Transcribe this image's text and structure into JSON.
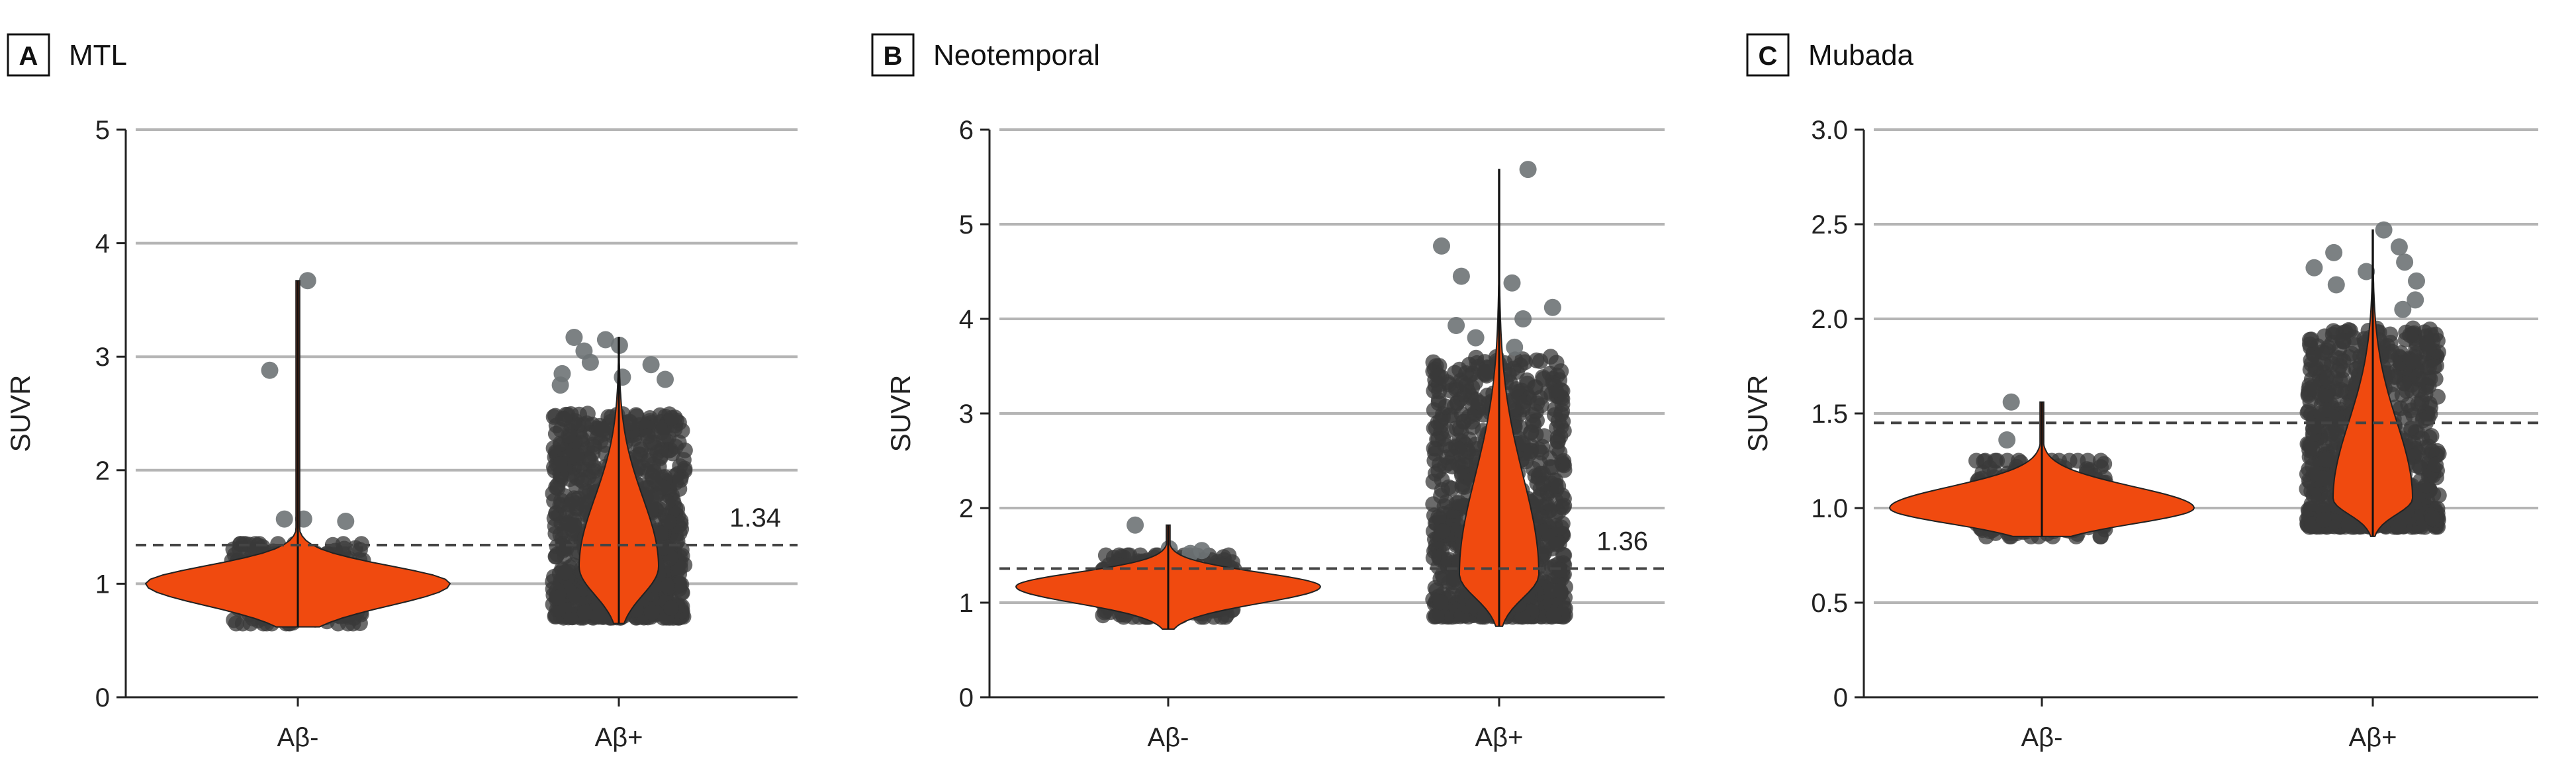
{
  "colors": {
    "violin": "#f04a0f",
    "violin_edge": "#222222",
    "points": "#3a3a3a",
    "gridline": "#b5b5b5",
    "reference_line": "#444444"
  },
  "chart_data": [
    {
      "panel_letter": "A",
      "title": "MTL",
      "type": "violin",
      "ylabel": "SUVR",
      "ylim": [
        0,
        5
      ],
      "yticks": [
        0,
        1,
        2,
        3,
        4,
        5
      ],
      "ytick_labels": [
        "0",
        "1",
        "2",
        "3",
        "4",
        "5"
      ],
      "categories": [
        "Aβ-",
        "Aβ+"
      ],
      "grid": true,
      "reference_line": {
        "value": 1.34,
        "label": "1.34"
      },
      "groups": [
        {
          "name": "Aβ-",
          "min": 0.62,
          "max": 3.67,
          "mode": 1.0,
          "bulk_range": [
            0.65,
            1.35
          ],
          "outliers": [
            3.67,
            2.88,
            1.57,
            1.57,
            1.55
          ]
        },
        {
          "name": "Aβ+",
          "min": 0.65,
          "max": 3.17,
          "mode": 1.15,
          "bulk_range": [
            0.7,
            2.5
          ],
          "outliers": [
            3.17,
            3.15,
            3.1,
            3.05,
            2.95,
            2.93,
            2.85,
            2.82,
            2.8,
            2.75
          ]
        }
      ]
    },
    {
      "panel_letter": "B",
      "title": "Neotemporal",
      "type": "violin",
      "ylabel": "SUVR",
      "ylim": [
        0,
        6
      ],
      "yticks": [
        0,
        1,
        2,
        3,
        4,
        5,
        6
      ],
      "ytick_labels": [
        "0",
        "1",
        "2",
        "3",
        "4",
        "5",
        "6"
      ],
      "categories": [
        "Aβ-",
        "Aβ+"
      ],
      "grid": true,
      "reference_line": {
        "value": 1.36,
        "label": "1.36"
      },
      "groups": [
        {
          "name": "Aβ-",
          "min": 0.72,
          "max": 1.82,
          "mode": 1.17,
          "bulk_range": [
            0.85,
            1.5
          ],
          "outliers": [
            1.82,
            1.57,
            1.55,
            1.52
          ]
        },
        {
          "name": "Aβ+",
          "min": 0.75,
          "max": 5.58,
          "mode": 1.3,
          "bulk_range": [
            0.85,
            3.6
          ],
          "outliers": [
            5.58,
            4.77,
            4.45,
            4.38,
            4.12,
            4.0,
            3.93,
            3.8,
            3.7
          ]
        }
      ]
    },
    {
      "panel_letter": "C",
      "title": "Mubada",
      "type": "violin",
      "ylabel": "SUVR",
      "ylim": [
        0,
        3.0
      ],
      "yticks": [
        0,
        0.5,
        1.0,
        1.5,
        2.0,
        2.5,
        3.0
      ],
      "ytick_labels": [
        "0",
        "0.5",
        "1.0",
        "1.5",
        "2.0",
        "2.5",
        "3.0"
      ],
      "categories": [
        "Aβ-",
        "Aβ+"
      ],
      "grid": true,
      "reference_line": {
        "value": 1.45,
        "label": ""
      },
      "groups": [
        {
          "name": "Aβ-",
          "min": 0.85,
          "max": 1.56,
          "mode": 1.0,
          "bulk_range": [
            0.85,
            1.25
          ],
          "outliers": [
            1.56,
            1.36
          ]
        },
        {
          "name": "Aβ+",
          "min": 0.85,
          "max": 2.47,
          "mode": 1.05,
          "bulk_range": [
            0.9,
            1.95
          ],
          "outliers": [
            2.47,
            2.38,
            2.35,
            2.3,
            2.27,
            2.25,
            2.2,
            2.18,
            2.1,
            2.05
          ]
        }
      ]
    }
  ]
}
